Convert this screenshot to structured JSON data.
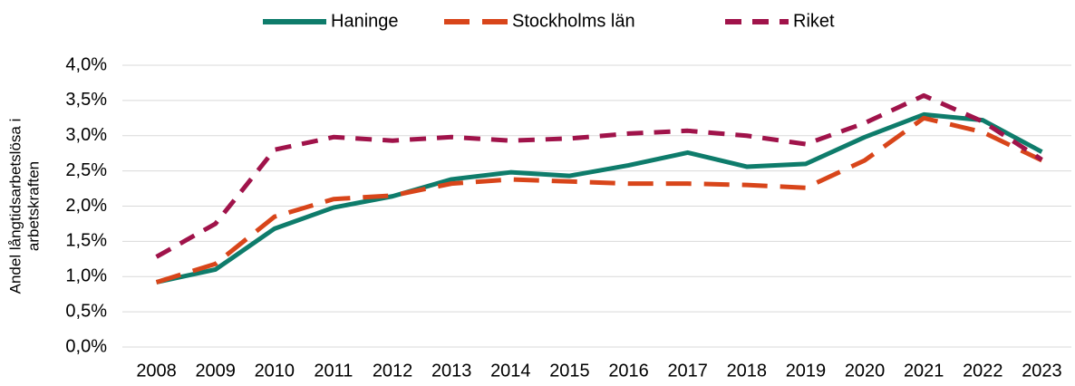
{
  "chart_data": {
    "type": "line",
    "categories": [
      "2008",
      "2009",
      "2010",
      "2011",
      "2012",
      "2013",
      "2014",
      "2015",
      "2016",
      "2017",
      "2018",
      "2019",
      "2020",
      "2021",
      "2022",
      "2023"
    ],
    "series": [
      {
        "name": "Haninge",
        "color": "#0e7c6b",
        "dash": "solid",
        "values": [
          0.92,
          1.1,
          1.68,
          1.98,
          2.14,
          2.38,
          2.48,
          2.43,
          2.58,
          2.76,
          2.56,
          2.6,
          2.98,
          3.3,
          3.22,
          2.77
        ]
      },
      {
        "name": "Stockholms län",
        "color": "#d8451a",
        "dash": "long",
        "values": [
          0.92,
          1.18,
          1.85,
          2.1,
          2.15,
          2.32,
          2.38,
          2.35,
          2.32,
          2.32,
          2.3,
          2.26,
          2.65,
          3.25,
          3.05,
          2.65
        ]
      },
      {
        "name": "Riket",
        "color": "#a0134a",
        "dash": "short",
        "values": [
          1.28,
          1.75,
          2.8,
          2.98,
          2.93,
          2.98,
          2.93,
          2.96,
          3.03,
          3.07,
          3.0,
          2.88,
          3.18,
          3.57,
          3.2,
          2.66
        ]
      }
    ],
    "y_label": [
      "Andel långtidsarbetslösa i",
      "arbetskraften"
    ],
    "ylim": [
      0,
      4
    ],
    "yticks": [
      {
        "value": 0,
        "label": "0,0%"
      },
      {
        "value": 0.5,
        "label": "0,5%"
      },
      {
        "value": 1,
        "label": "1,0%"
      },
      {
        "value": 1.5,
        "label": "1,5%"
      },
      {
        "value": 2,
        "label": "2,0%"
      },
      {
        "value": 2.5,
        "label": "2,5%"
      },
      {
        "value": 3,
        "label": "3,0%"
      },
      {
        "value": 3.5,
        "label": "3,5%"
      },
      {
        "value": 4,
        "label": "4,0%"
      }
    ],
    "grid": true,
    "legend": "top"
  }
}
